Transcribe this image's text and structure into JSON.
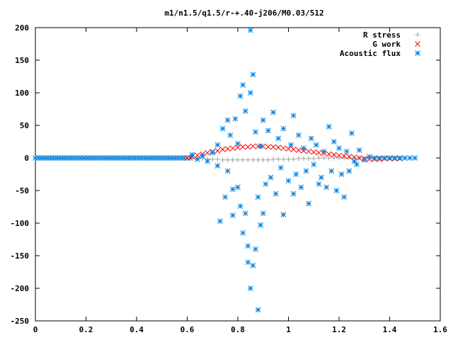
{
  "chart_data": {
    "type": "scatter",
    "title": "m1/n1.5/q1.5/r-+.40-j206/M0.03/512",
    "xlabel": "",
    "ylabel": "",
    "xlim": [
      0,
      1.6
    ],
    "ylim": [
      -250,
      200
    ],
    "x_ticks": [
      0,
      0.2,
      0.4,
      0.6,
      0.8,
      1,
      1.2,
      1.4,
      1.6
    ],
    "x_tick_labels": [
      "0",
      "0.2",
      "0.4",
      "0.6",
      "0.8",
      "1",
      "1.2",
      "1.4",
      "1.6"
    ],
    "y_ticks": [
      -250,
      -200,
      -150,
      -100,
      -50,
      0,
      50,
      100,
      150,
      200
    ],
    "y_tick_labels": [
      "-250",
      "-200",
      "-150",
      "-100",
      "-50",
      "0",
      "50",
      "100",
      "150",
      "200"
    ],
    "grid": false,
    "legend_position": "top-right",
    "series": [
      {
        "name": "R stress",
        "marker": "plus",
        "color": "#a0a0a0",
        "points": [
          [
            0.6,
            0
          ],
          [
            0.62,
            -1
          ],
          [
            0.64,
            -1
          ],
          [
            0.66,
            -1
          ],
          [
            0.68,
            -2
          ],
          [
            0.7,
            -2
          ],
          [
            0.72,
            -2
          ],
          [
            0.74,
            -3
          ],
          [
            0.76,
            -3
          ],
          [
            0.78,
            -3
          ],
          [
            0.8,
            -3
          ],
          [
            0.82,
            -3
          ],
          [
            0.84,
            -3
          ],
          [
            0.86,
            -3
          ],
          [
            0.88,
            -3
          ],
          [
            0.9,
            -3
          ],
          [
            0.92,
            -3
          ],
          [
            0.94,
            -2
          ],
          [
            0.96,
            -2
          ],
          [
            0.98,
            -2
          ],
          [
            1.0,
            -2
          ],
          [
            1.02,
            -2
          ],
          [
            1.04,
            -1
          ],
          [
            1.06,
            -1
          ],
          [
            1.08,
            -1
          ],
          [
            1.1,
            -1
          ],
          [
            1.12,
            0
          ],
          [
            1.14,
            0
          ],
          [
            1.16,
            0
          ],
          [
            1.18,
            0
          ],
          [
            1.2,
            0
          ],
          [
            1.22,
            0
          ],
          [
            1.24,
            0
          ],
          [
            1.26,
            0
          ],
          [
            1.28,
            0
          ],
          [
            1.3,
            0
          ]
        ]
      },
      {
        "name": "G work",
        "marker": "cross",
        "color": "#ff0000",
        "points": [
          [
            0.6,
            0
          ],
          [
            0.62,
            2
          ],
          [
            0.64,
            4
          ],
          [
            0.66,
            6
          ],
          [
            0.68,
            8
          ],
          [
            0.7,
            10
          ],
          [
            0.72,
            11
          ],
          [
            0.74,
            13
          ],
          [
            0.76,
            14
          ],
          [
            0.78,
            15
          ],
          [
            0.8,
            16
          ],
          [
            0.82,
            17
          ],
          [
            0.84,
            17
          ],
          [
            0.86,
            18
          ],
          [
            0.88,
            18
          ],
          [
            0.9,
            18
          ],
          [
            0.92,
            17
          ],
          [
            0.94,
            17
          ],
          [
            0.96,
            16
          ],
          [
            0.98,
            15
          ],
          [
            1.0,
            14
          ],
          [
            1.02,
            13
          ],
          [
            1.04,
            12
          ],
          [
            1.06,
            11
          ],
          [
            1.08,
            10
          ],
          [
            1.1,
            9
          ],
          [
            1.12,
            8
          ],
          [
            1.14,
            7
          ],
          [
            1.16,
            6
          ],
          [
            1.18,
            5
          ],
          [
            1.2,
            4
          ],
          [
            1.22,
            3
          ],
          [
            1.24,
            2
          ],
          [
            1.26,
            1
          ],
          [
            1.28,
            0
          ],
          [
            1.3,
            -1
          ],
          [
            1.32,
            -2
          ],
          [
            1.34,
            -2
          ],
          [
            1.36,
            -2
          ],
          [
            1.38,
            -1
          ],
          [
            1.4,
            -1
          ],
          [
            1.42,
            -1
          ],
          [
            1.44,
            -1
          ]
        ]
      },
      {
        "name": "Acoustic flux",
        "marker": "star",
        "color": "#0080e0",
        "points": [
          [
            0.62,
            5
          ],
          [
            0.64,
            -2
          ],
          [
            0.66,
            3
          ],
          [
            0.68,
            -5
          ],
          [
            0.7,
            8
          ],
          [
            0.72,
            -12
          ],
          [
            0.72,
            20
          ],
          [
            0.73,
            -97
          ],
          [
            0.74,
            45
          ],
          [
            0.75,
            -60
          ],
          [
            0.76,
            58
          ],
          [
            0.76,
            -20
          ],
          [
            0.77,
            35
          ],
          [
            0.78,
            -88
          ],
          [
            0.78,
            -48
          ],
          [
            0.79,
            60
          ],
          [
            0.8,
            -45
          ],
          [
            0.8,
            22
          ],
          [
            0.81,
            -74
          ],
          [
            0.81,
            95
          ],
          [
            0.82,
            -115
          ],
          [
            0.82,
            112
          ],
          [
            0.83,
            -85
          ],
          [
            0.83,
            72
          ],
          [
            0.84,
            -160
          ],
          [
            0.84,
            -135
          ],
          [
            0.85,
            100
          ],
          [
            0.85,
            -200
          ],
          [
            0.85,
            196
          ],
          [
            0.86,
            -165
          ],
          [
            0.86,
            128
          ],
          [
            0.87,
            -140
          ],
          [
            0.87,
            40
          ],
          [
            0.88,
            -60
          ],
          [
            0.88,
            -233
          ],
          [
            0.89,
            -103
          ],
          [
            0.89,
            18
          ],
          [
            0.9,
            -85
          ],
          [
            0.9,
            58
          ],
          [
            0.91,
            -40
          ],
          [
            0.92,
            42
          ],
          [
            0.93,
            -30
          ],
          [
            0.94,
            70
          ],
          [
            0.95,
            -55
          ],
          [
            0.96,
            30
          ],
          [
            0.97,
            -15
          ],
          [
            0.98,
            -87
          ],
          [
            0.98,
            45
          ],
          [
            1.0,
            -35
          ],
          [
            1.01,
            20
          ],
          [
            1.02,
            -55
          ],
          [
            1.02,
            65
          ],
          [
            1.03,
            -25
          ],
          [
            1.04,
            35
          ],
          [
            1.05,
            -45
          ],
          [
            1.06,
            15
          ],
          [
            1.07,
            -20
          ],
          [
            1.08,
            -70
          ],
          [
            1.09,
            30
          ],
          [
            1.1,
            -10
          ],
          [
            1.11,
            20
          ],
          [
            1.12,
            -40
          ],
          [
            1.13,
            -30
          ],
          [
            1.14,
            10
          ],
          [
            1.15,
            -45
          ],
          [
            1.16,
            48
          ],
          [
            1.17,
            -20
          ],
          [
            1.18,
            25
          ],
          [
            1.19,
            -50
          ],
          [
            1.2,
            15
          ],
          [
            1.21,
            -25
          ],
          [
            1.22,
            -60
          ],
          [
            1.23,
            10
          ],
          [
            1.24,
            -20
          ],
          [
            1.25,
            38
          ],
          [
            1.26,
            -5
          ],
          [
            1.27,
            -10
          ],
          [
            1.28,
            12
          ],
          [
            1.3,
            -3
          ],
          [
            1.32,
            2
          ],
          [
            1.34,
            0
          ],
          [
            1.36,
            0
          ],
          [
            1.38,
            0
          ],
          [
            1.4,
            0
          ],
          [
            1.42,
            0
          ],
          [
            1.44,
            0
          ],
          [
            1.46,
            0
          ],
          [
            1.48,
            0
          ],
          [
            1.5,
            0
          ]
        ]
      }
    ]
  }
}
